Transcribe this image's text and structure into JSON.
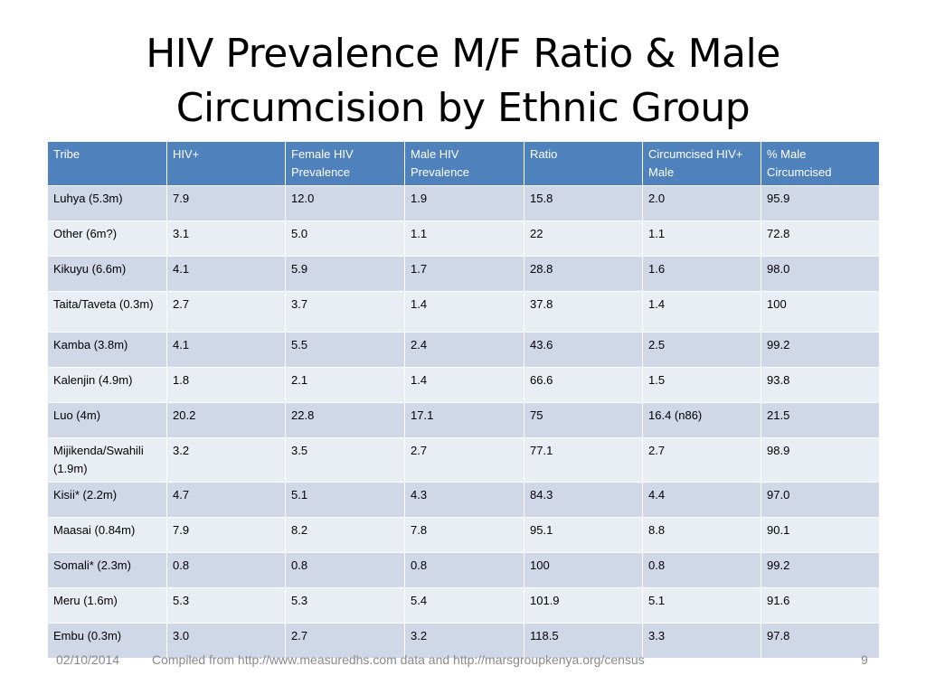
{
  "slide": {
    "title_line1": "HIV Prevalence M/F Ratio & Male",
    "title_line2": "Circumcision by Ethnic Group"
  },
  "table": {
    "headers": [
      "Tribe",
      "HIV+",
      "Female HIV Prevalence",
      "Male HIV Prevalence",
      "Ratio",
      "Circumcised HIV+ Male",
      "% Male Circumcised"
    ],
    "rows": [
      [
        "Luhya (5.3m)",
        "7.9",
        "12.0",
        "1.9",
        "15.8",
        "2.0",
        "95.9"
      ],
      [
        "Other (6m?)",
        "3.1",
        "5.0",
        "1.1",
        "22",
        "1.1",
        "72.8"
      ],
      [
        "Kikuyu  (6.6m)",
        "4.1",
        "5.9",
        "1.7",
        "28.8",
        "1.6",
        "98.0"
      ],
      [
        "Taita/Taveta (0.3m)",
        "2.7",
        "3.7",
        "1.4",
        "37.8",
        "1.4",
        "100"
      ],
      [
        "Kamba (3.8m)",
        "4.1",
        "5.5",
        "2.4",
        "43.6",
        "2.5",
        "99.2"
      ],
      [
        "Kalenjin (4.9m)",
        "1.8",
        "2.1",
        "1.4",
        "66.6",
        "1.5",
        "93.8"
      ],
      [
        "Luo (4m)",
        "20.2",
        "22.8",
        "17.1",
        "75",
        "16.4 (n86)",
        "21.5"
      ],
      [
        "Mijikenda/Swahili (1.9m)",
        "3.2",
        "3.5",
        "2.7",
        "77.1",
        "2.7",
        "98.9"
      ],
      [
        "Kisii* (2.2m)",
        "4.7",
        "5.1",
        "4.3",
        "84.3",
        "4.4",
        "97.0"
      ],
      [
        "Maasai (0.84m)",
        "7.9",
        "8.2",
        "7.8",
        "95.1",
        "8.8",
        "90.1"
      ],
      [
        "Somali* (2.3m)",
        "0.8",
        "0.8",
        "0.8",
        "100",
        "0.8",
        "99.2"
      ],
      [
        "Meru (1.6m)",
        "5.3",
        "5.3",
        "5.4",
        "101.9",
        "5.1",
        "91.6"
      ],
      [
        "Embu (0.3m)",
        "3.0",
        "2.7",
        "3.2",
        "118.5",
        "3.3",
        "97.8"
      ]
    ]
  },
  "footer": {
    "date": "02/10/2014",
    "source": "Compiled from  http://www.measuredhs.com data and  http://marsgroupkenya.org/census",
    "page_number": "9"
  },
  "colors": {
    "header_bg": "#4f81bd",
    "row_dark": "#d0d8e8",
    "row_light": "#e9edf4",
    "footer_text": "#898989"
  }
}
